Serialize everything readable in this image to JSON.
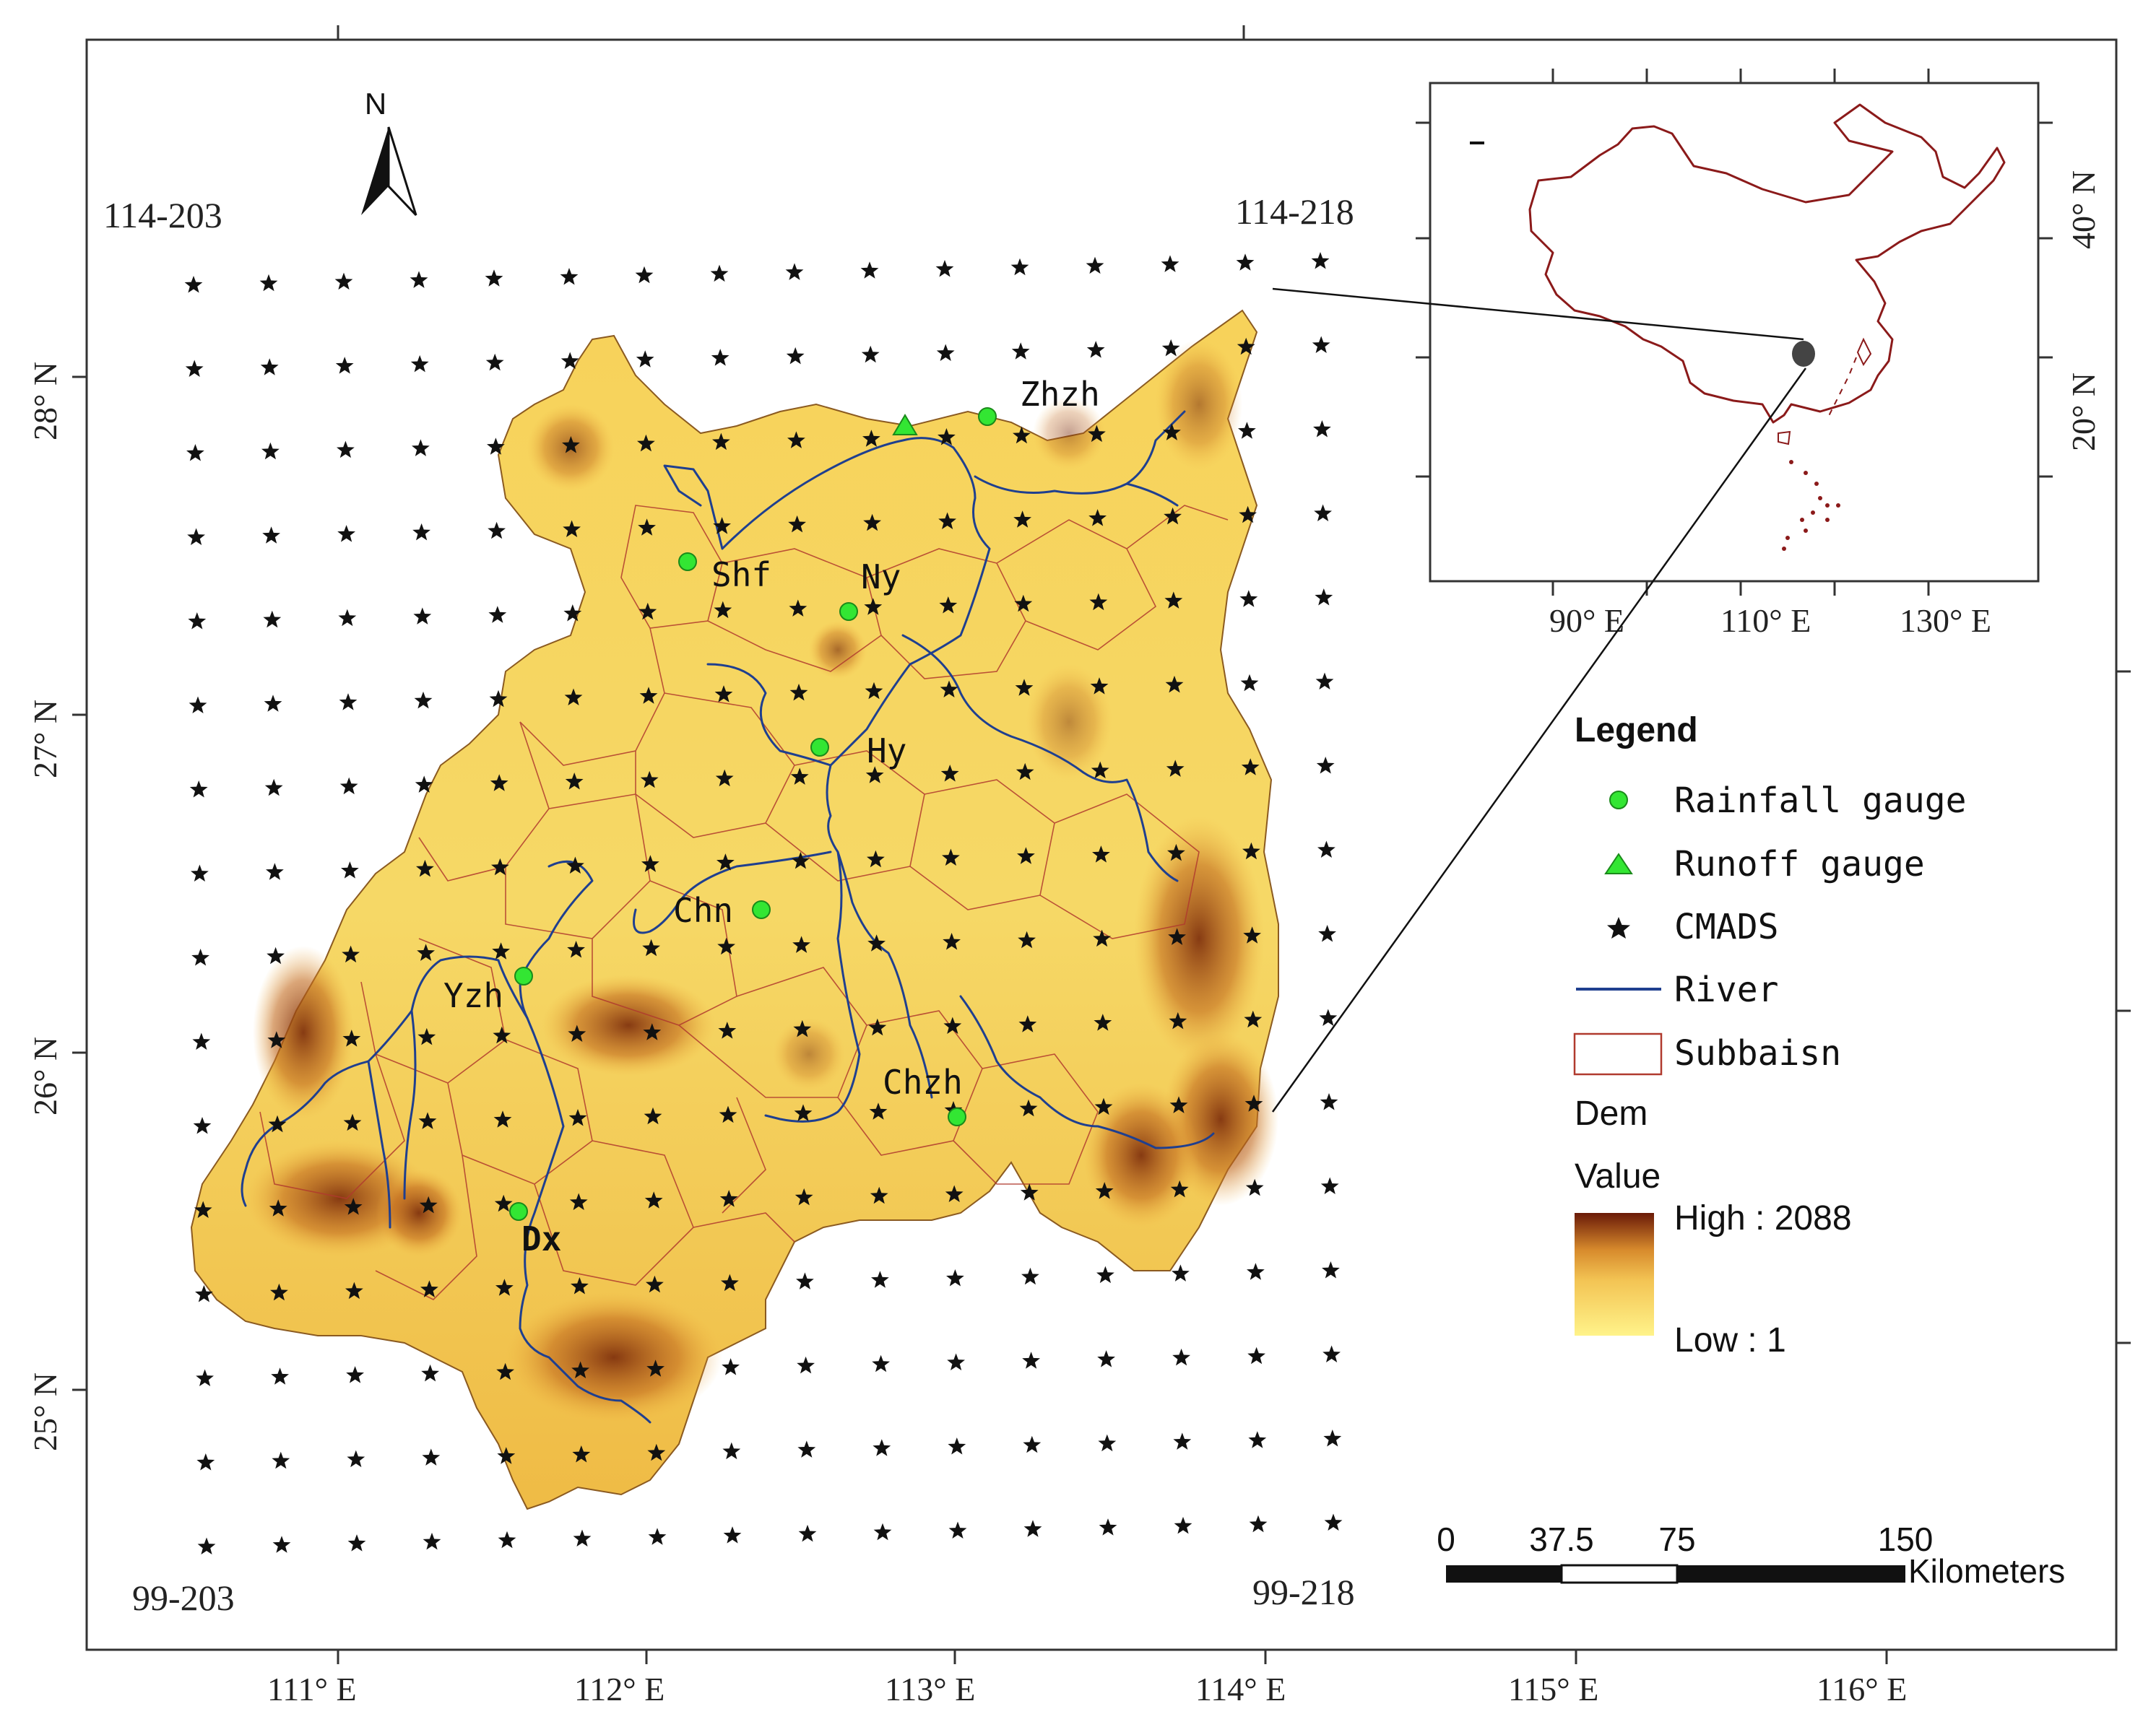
{
  "corner_labels": {
    "top_left": "114-203",
    "top_right": "114-218",
    "bottom_left": "99-203",
    "bottom_right": "99-218"
  },
  "north_arrow": {
    "label": "N"
  },
  "axes": {
    "x_ticks": [
      "111° E",
      "112° E",
      "113° E",
      "114° E",
      "115° E",
      "116° E"
    ],
    "y_ticks": [
      "28° N",
      "27° N",
      "26° N",
      "25° N"
    ]
  },
  "gauges": [
    {
      "label": "Zhzh",
      "kind": "rainfall"
    },
    {
      "label": "Shf",
      "kind": "rainfall"
    },
    {
      "label": "Ny",
      "kind": "rainfall"
    },
    {
      "label": "Hy",
      "kind": "rainfall"
    },
    {
      "label": "Chn",
      "kind": "rainfall"
    },
    {
      "label": "Yzh",
      "kind": "rainfall"
    },
    {
      "label": "Chzh",
      "kind": "rainfall"
    },
    {
      "label": "Dx",
      "kind": "rainfall"
    },
    {
      "label": "",
      "kind": "runoff"
    }
  ],
  "inset": {
    "x_ticks": [
      "90° E",
      "110° E",
      "130° E"
    ],
    "y_ticks": [
      "40° N",
      "20° N"
    ]
  },
  "legend": {
    "title": "Legend",
    "items": [
      {
        "label": "Rainfall gauge",
        "symbol": "green-circle"
      },
      {
        "label": "Runoff gauge",
        "symbol": "green-triangle"
      },
      {
        "label": "CMADS",
        "symbol": "black-star"
      },
      {
        "label": "River",
        "symbol": "blue-line"
      },
      {
        "label": "Subbaisn",
        "symbol": "red-outline-box"
      }
    ],
    "dem_title": "Dem",
    "dem_value": "Value",
    "dem_high": "High : 2088",
    "dem_low": "Low : 1"
  },
  "scalebar": {
    "ticks": [
      "0",
      "37.5",
      "75",
      "150"
    ],
    "unit": "Kilometers"
  },
  "colors": {
    "rainfall_gauge": "#33e633",
    "runoff_gauge": "#33e633",
    "river": "#1f3f8f",
    "subbasin": "#b03a2e",
    "dem_low": "#fff38a",
    "dem_mid": "#f0b040",
    "dem_high": "#6a1a08",
    "inset_china": "#8b1a1a"
  }
}
